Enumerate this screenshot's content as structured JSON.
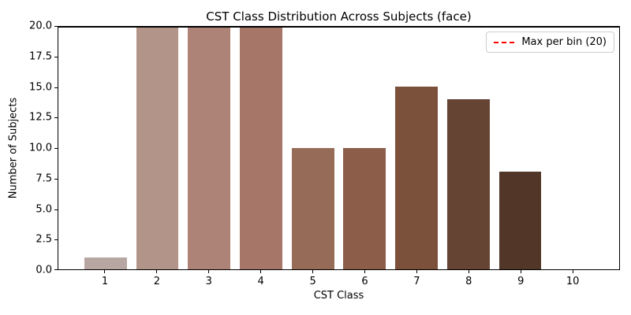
{
  "chart_data": {
    "type": "bar",
    "title": "CST Class Distribution Across Subjects (face)",
    "xlabel": "CST Class",
    "ylabel": "Number of Subjects",
    "categories": [
      "1",
      "2",
      "3",
      "4",
      "5",
      "6",
      "7",
      "8",
      "9",
      "10"
    ],
    "values": [
      1,
      20,
      20,
      20,
      10,
      10,
      15,
      14,
      8,
      0
    ],
    "bar_colors": [
      "#b8a6a2",
      "#b29488",
      "#ae8377",
      "#a67768",
      "#966b57",
      "#8c5e4a",
      "#7b513c",
      "#664434",
      "#523729",
      "#402a20"
    ],
    "ylim": [
      0,
      20
    ],
    "yticks": [
      "0.0",
      "2.5",
      "5.0",
      "7.5",
      "10.0",
      "12.5",
      "15.0",
      "17.5",
      "20.0"
    ],
    "grid": false,
    "max_line": {
      "y": 20,
      "color": "#ff0000",
      "style": "dashed"
    },
    "legend": {
      "label": "Max per bin (20)",
      "line_color": "#ff0000",
      "line_style": "dashed",
      "position": "upper right"
    }
  }
}
